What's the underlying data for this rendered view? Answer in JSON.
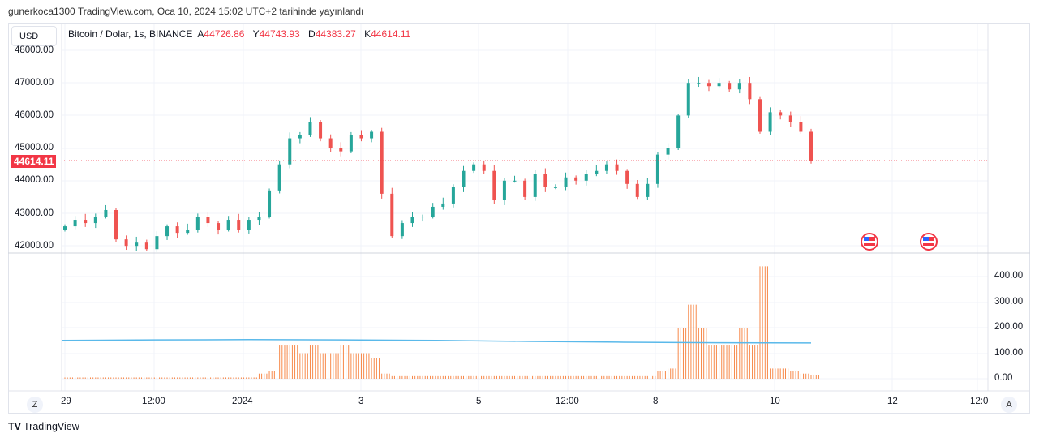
{
  "header": {
    "published": "gunerkoca1300 TradingView.com, Oca 10, 2024 15:02 UTC+2 tarihinde yayınlandı"
  },
  "currency_button": "USD",
  "legend": {
    "symbol": "Bitcoin / Dolar, 1s, BINANCE",
    "o_label": "A",
    "o": "44726.86",
    "h_label": "Y",
    "h": "44743.93",
    "l_label": "D",
    "l": "44383.27",
    "c_label": "K",
    "c": "44614.11"
  },
  "current_price_tag": "44614.11",
  "scale_buttons": {
    "left": "Z",
    "right": "A"
  },
  "footer": {
    "logo": "TV",
    "brand": "TradingView"
  },
  "colors": {
    "up": "#26a69a",
    "down": "#ef5350",
    "volume": "#f7894a",
    "ma": "#5ab9ea",
    "price_line": "#f23645"
  },
  "chart_data": {
    "type": "candlestick",
    "title": "Bitcoin / Dolar, 1s, BINANCE",
    "price_axis": {
      "ticks": [
        "48000.00",
        "47000.00",
        "46000.00",
        "45000.00",
        "44000.00",
        "43000.00",
        "42000.00"
      ],
      "range": [
        41800,
        48000
      ]
    },
    "volume_axis": {
      "ticks": [
        "400.00",
        "300.00",
        "200.00",
        "100.00",
        "0.00"
      ],
      "range": [
        0,
        420
      ]
    },
    "time_ticks": [
      "29",
      "12:00",
      "2024",
      "3",
      "5",
      "12:00",
      "8",
      "10",
      "12",
      "12:0"
    ],
    "closes": [
      42600,
      42800,
      42700,
      42900,
      43100,
      42200,
      42000,
      42100,
      41900,
      42300,
      42600,
      42400,
      42500,
      42900,
      42700,
      42500,
      42800,
      42500,
      42800,
      42900,
      43700,
      44500,
      45300,
      45400,
      45800,
      45300,
      45000,
      44900,
      45400,
      45300,
      45500,
      43600,
      42300,
      42700,
      42900,
      42900,
      43200,
      43300,
      43800,
      44300,
      44500,
      44300,
      43400,
      44000,
      44000,
      43500,
      44200,
      43800,
      43800,
      44100,
      44000,
      44200,
      44300,
      44500,
      44300,
      43900,
      43500,
      43900,
      44800,
      45000,
      46000,
      47000,
      47000,
      46900,
      47000,
      46800,
      47000,
      46500,
      45500,
      46100,
      46000,
      45800,
      45500,
      44614.11
    ],
    "volumes": [
      5,
      5,
      5,
      5,
      5,
      5,
      5,
      5,
      5,
      5,
      5,
      5,
      5,
      5,
      5,
      5,
      5,
      5,
      5,
      20,
      30,
      130,
      130,
      100,
      130,
      100,
      100,
      130,
      100,
      100,
      80,
      20,
      10,
      10,
      10,
      10,
      10,
      10,
      10,
      10,
      10,
      10,
      10,
      10,
      10,
      10,
      10,
      10,
      10,
      10,
      10,
      10,
      10,
      10,
      10,
      10,
      10,
      10,
      30,
      40,
      200,
      290,
      200,
      130,
      130,
      130,
      200,
      130,
      440,
      40,
      40,
      30,
      20,
      15
    ],
    "volume_ma": [
      150,
      152,
      153,
      152,
      150,
      146,
      143,
      141,
      140
    ],
    "last_price": 44614.11,
    "grid": true
  }
}
